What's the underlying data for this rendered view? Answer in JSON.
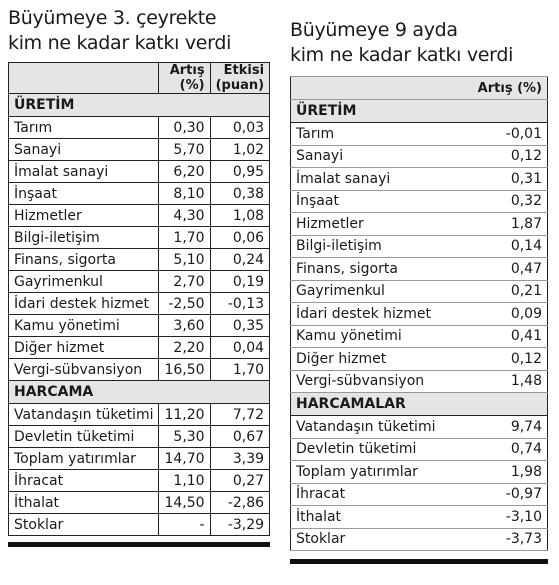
{
  "left": {
    "title_line1": "Büyümeye 3. çeyrekte",
    "title_line2": "kim ne kadar katkı verdi",
    "col_change_line1": "Artış",
    "col_change_line2": "(%)",
    "col_effect_line1": "Etkisi",
    "col_effect_line2": "(puan)",
    "sections": [
      {
        "name": "ÜRETİM",
        "rows": [
          {
            "label": "Tarım",
            "change": "0,30",
            "effect": "0,03"
          },
          {
            "label": "Sanayi",
            "change": "5,70",
            "effect": "1,02"
          },
          {
            "label": "İmalat sanayi",
            "change": "6,20",
            "effect": "0,95"
          },
          {
            "label": "İnşaat",
            "change": "8,10",
            "effect": "0,38"
          },
          {
            "label": "Hizmetler",
            "change": "4,30",
            "effect": "1,08"
          },
          {
            "label": "Bilgi-iletişim",
            "change": "1,70",
            "effect": "0,06"
          },
          {
            "label": "Finans, sigorta",
            "change": "5,10",
            "effect": "0,24"
          },
          {
            "label": "Gayrimenkul",
            "change": "2,70",
            "effect": "0,19"
          },
          {
            "label": "İdari destek hizmet",
            "change": "-2,50",
            "effect": "-0,13"
          },
          {
            "label": "Kamu yönetimi",
            "change": "3,60",
            "effect": "0,35"
          },
          {
            "label": "Diğer hizmet",
            "change": "2,20",
            "effect": "0,04"
          },
          {
            "label": "Vergi-sübvansiyon",
            "change": "16,50",
            "effect": "1,70"
          }
        ]
      },
      {
        "name": "HARCAMA",
        "rows": [
          {
            "label": "Vatandaşın tüketimi",
            "change": "11,20",
            "effect": "7,72"
          },
          {
            "label": "Devletin tüketimi",
            "change": "5,30",
            "effect": "0,67"
          },
          {
            "label": "Toplam yatırımlar",
            "change": "14,70",
            "effect": "3,39"
          },
          {
            "label": "İhracat",
            "change": "1,10",
            "effect": "0,27"
          },
          {
            "label": "İthalat",
            "change": "14,50",
            "effect": "-2,86"
          },
          {
            "label": "Stoklar",
            "change": "-",
            "effect": "-3,29"
          }
        ]
      }
    ]
  },
  "right": {
    "title_line1": "Büyümeye 9 ayda",
    "title_line2": "kim ne kadar katkı verdi",
    "col_change": "Artış (%)",
    "sections": [
      {
        "name": "ÜRETİM",
        "rows": [
          {
            "label": "Tarım",
            "change": "-0,01"
          },
          {
            "label": "Sanayi",
            "change": "0,12"
          },
          {
            "label": "İmalat sanayi",
            "change": "0,31"
          },
          {
            "label": "İnşaat",
            "change": "0,32"
          },
          {
            "label": "Hizmetler",
            "change": "1,87"
          },
          {
            "label": "Bilgi-iletişim",
            "change": "0,14"
          },
          {
            "label": "Finans, sigorta",
            "change": "0,47"
          },
          {
            "label": "Gayrimenkul",
            "change": "0,21"
          },
          {
            "label": "İdari destek hizmet",
            "change": "0,09"
          },
          {
            "label": "Kamu yönetimi",
            "change": "0,41"
          },
          {
            "label": "Diğer hizmet",
            "change": "0,12"
          },
          {
            "label": "Vergi-sübvansiyon",
            "change": "1,48"
          }
        ]
      },
      {
        "name": "HARCAMALAR",
        "rows": [
          {
            "label": "Vatandaşın tüketimi",
            "change": "9,74"
          },
          {
            "label": "Devletin tüketimi",
            "change": "0,74"
          },
          {
            "label": "Toplam yatırımlar",
            "change": "1,98"
          },
          {
            "label": "İhracat",
            "change": "-0,97"
          },
          {
            "label": "İthalat",
            "change": "-3,10"
          },
          {
            "label": "Stoklar",
            "change": "-3,73"
          }
        ]
      }
    ]
  }
}
